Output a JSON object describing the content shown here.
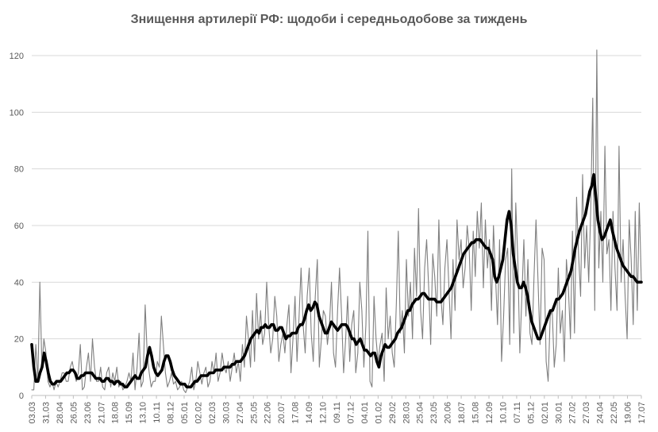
{
  "chart_data": {
    "type": "line",
    "title": "Знищення артилерії РФ: щодоби і середньодобове за тиждень",
    "xlabel": "",
    "ylabel": "",
    "ylim": [
      0,
      120
    ],
    "y_ticks": [
      0,
      20,
      40,
      60,
      80,
      100,
      120
    ],
    "grid": "horizontal",
    "legend": "none",
    "x_tick_labels": [
      "03.03",
      "31.03",
      "28.04",
      "26.05",
      "23.06",
      "21.07",
      "18.08",
      "15.09",
      "13.10",
      "10.11",
      "08.12",
      "05.01",
      "02.02",
      "02.03",
      "30.03",
      "27.04",
      "25.05",
      "22.06",
      "20.07",
      "17.08",
      "14.09",
      "12.10",
      "09.11",
      "07.12",
      "04.01",
      "01.02",
      "29.02",
      "28.03",
      "25.04",
      "23.05",
      "20.06",
      "18.07",
      "15.08",
      "12.09",
      "10.10",
      "07.11",
      "05.12",
      "02.01",
      "30.01",
      "27.02",
      "27.03",
      "24.04",
      "22.05",
      "19.06",
      "17.07"
    ],
    "colors": {
      "daily": "#7f7f7f",
      "weekly": "#000000",
      "grid": "#d9d9d9",
      "axis_text": "#595959",
      "title": "#595959"
    },
    "series": [
      {
        "role": "daily",
        "values": [
          2,
          2,
          18,
          5,
          40,
          10,
          20,
          15,
          5,
          3,
          5,
          2,
          5,
          3,
          5,
          8,
          8,
          5,
          5,
          10,
          12,
          8,
          5,
          8,
          18,
          2,
          3,
          10,
          15,
          5,
          20,
          10,
          5,
          5,
          10,
          3,
          2,
          8,
          10,
          3,
          8,
          5,
          10,
          3,
          5,
          2,
          3,
          5,
          8,
          5,
          15,
          2,
          10,
          22,
          3,
          5,
          32,
          15,
          8,
          3,
          5,
          5,
          12,
          10,
          28,
          18,
          8,
          3,
          5,
          8,
          4,
          5,
          2,
          3,
          5,
          2,
          1,
          3,
          5,
          10,
          2,
          5,
          12,
          8,
          4,
          8,
          10,
          3,
          5,
          12,
          8,
          15,
          5,
          8,
          15,
          10,
          8,
          12,
          5,
          10,
          15,
          8,
          12,
          5,
          18,
          10,
          28,
          20,
          10,
          30,
          12,
          36,
          20,
          30,
          18,
          22,
          40,
          25,
          15,
          20,
          35,
          28,
          12,
          18,
          22,
          15,
          25,
          32,
          8,
          20,
          35,
          12,
          28,
          45,
          25,
          15,
          35,
          45,
          22,
          12,
          35,
          48,
          10,
          20,
          30,
          28,
          18,
          25,
          40,
          15,
          10,
          30,
          45,
          28,
          8,
          20,
          35,
          12,
          25,
          30,
          8,
          15,
          40,
          30,
          10,
          25,
          58,
          5,
          3,
          35,
          20,
          12,
          18,
          22,
          5,
          38,
          20,
          28,
          15,
          10,
          32,
          58,
          22,
          30,
          15,
          48,
          28,
          40,
          20,
          52,
          35,
          66,
          30,
          20,
          45,
          55,
          38,
          18,
          50,
          42,
          28,
          62,
          35,
          25,
          45,
          55,
          38,
          20,
          48,
          30,
          62,
          48,
          55,
          38,
          45,
          60,
          52,
          30,
          58,
          42,
          65,
          52,
          68,
          38,
          62,
          45,
          55,
          30,
          60,
          42,
          25,
          55,
          12,
          28,
          48,
          52,
          18,
          80,
          22,
          68,
          48,
          15,
          35,
          55,
          28,
          48,
          22,
          18,
          42,
          62,
          40,
          18,
          52,
          48,
          12,
          5,
          28,
          30,
          10,
          18,
          45,
          22,
          30,
          12,
          48,
          38,
          20,
          58,
          22,
          70,
          50,
          35,
          78,
          45,
          60,
          40,
          65,
          105,
          30,
          122,
          45,
          65,
          40,
          88,
          50,
          55,
          30,
          65,
          45,
          30,
          88,
          40,
          55,
          35,
          20,
          62,
          48,
          25,
          65,
          30,
          68,
          40
        ]
      },
      {
        "role": "weekly",
        "values": [
          18,
          10,
          5,
          5,
          8,
          10,
          15,
          12,
          8,
          5,
          4,
          4,
          5,
          5,
          5,
          6,
          7,
          8,
          8,
          9,
          9,
          8,
          6,
          6,
          7,
          7,
          8,
          8,
          8,
          8,
          7,
          6,
          6,
          6,
          5,
          5,
          6,
          6,
          5,
          5,
          4,
          5,
          5,
          4,
          4,
          3,
          3,
          4,
          5,
          6,
          7,
          6,
          6,
          8,
          9,
          10,
          14,
          17,
          14,
          10,
          8,
          7,
          8,
          9,
          12,
          14,
          14,
          12,
          9,
          7,
          6,
          5,
          4,
          4,
          4,
          3,
          3,
          3,
          4,
          5,
          5,
          6,
          7,
          7,
          7,
          7,
          8,
          8,
          8,
          9,
          9,
          9,
          9,
          10,
          10,
          10,
          10,
          11,
          11,
          12,
          12,
          12,
          13,
          14,
          16,
          18,
          20,
          21,
          22,
          23,
          22,
          24,
          24,
          25,
          24,
          24,
          25,
          25,
          23,
          23,
          24,
          24,
          22,
          20,
          21,
          21,
          22,
          22,
          22,
          24,
          25,
          25,
          27,
          30,
          32,
          30,
          31,
          33,
          32,
          28,
          26,
          24,
          22,
          22,
          24,
          26,
          25,
          24,
          23,
          24,
          25,
          25,
          25,
          24,
          22,
          20,
          20,
          18,
          19,
          20,
          18,
          16,
          16,
          15,
          14,
          15,
          15,
          12,
          10,
          14,
          16,
          18,
          17,
          17,
          18,
          19,
          20,
          22,
          23,
          24,
          26,
          28,
          30,
          30,
          32,
          33,
          34,
          34,
          35,
          36,
          36,
          35,
          34,
          34,
          34,
          34,
          33,
          33,
          33,
          34,
          35,
          36,
          37,
          38,
          40,
          42,
          44,
          46,
          48,
          50,
          51,
          52,
          53,
          54,
          54,
          55,
          55,
          55,
          54,
          53,
          52,
          52,
          50,
          48,
          42,
          40,
          42,
          45,
          48,
          55,
          62,
          65,
          60,
          50,
          45,
          40,
          38,
          38,
          40,
          38,
          35,
          30,
          26,
          24,
          22,
          20,
          20,
          22,
          24,
          26,
          28,
          30,
          30,
          32,
          34,
          34,
          35,
          36,
          38,
          40,
          42,
          44,
          48,
          52,
          55,
          58,
          60,
          62,
          64,
          68,
          72,
          74,
          78,
          70,
          62,
          58,
          55,
          56,
          58,
          60,
          62,
          58,
          55,
          52,
          50,
          48,
          46,
          45,
          44,
          43,
          42,
          42,
          41,
          40,
          40,
          40
        ]
      }
    ]
  }
}
